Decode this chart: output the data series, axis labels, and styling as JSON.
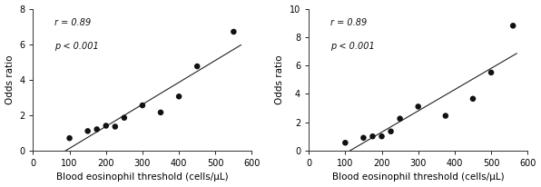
{
  "left": {
    "x": [
      100,
      150,
      175,
      200,
      225,
      250,
      300,
      350,
      400,
      450,
      550
    ],
    "y": [
      0.7,
      1.1,
      1.2,
      1.4,
      1.35,
      1.85,
      2.55,
      2.15,
      3.05,
      4.75,
      6.7
    ],
    "xlim": [
      0,
      600
    ],
    "ylim": [
      0,
      8
    ],
    "yticks": [
      0,
      2,
      4,
      6,
      8
    ],
    "xticks": [
      0,
      100,
      200,
      300,
      400,
      500,
      600
    ],
    "annotation_line1": "r = 0.89",
    "annotation_line2": "p < 0.001"
  },
  "right": {
    "x": [
      100,
      150,
      175,
      200,
      225,
      250,
      300,
      375,
      450,
      500,
      560
    ],
    "y": [
      0.55,
      0.9,
      1.0,
      1.0,
      1.35,
      2.25,
      3.1,
      2.45,
      3.65,
      5.5,
      8.8
    ],
    "xlim": [
      0,
      600
    ],
    "ylim": [
      0,
      10
    ],
    "yticks": [
      0,
      2,
      4,
      6,
      8,
      10
    ],
    "xticks": [
      0,
      100,
      200,
      300,
      400,
      500,
      600
    ],
    "annotation_line1": "r = 0.89",
    "annotation_line2": "p < 0.001"
  },
  "xlabel": "Blood eosinophil threshold (cells/μL)",
  "ylabel": "Odds ratio",
  "dot_color": "#111111",
  "line_color": "#222222",
  "dot_size": 22,
  "annotation_fontsize": 7.0,
  "axis_label_fontsize": 7.5,
  "tick_fontsize": 7.0,
  "background_color": "#ffffff"
}
